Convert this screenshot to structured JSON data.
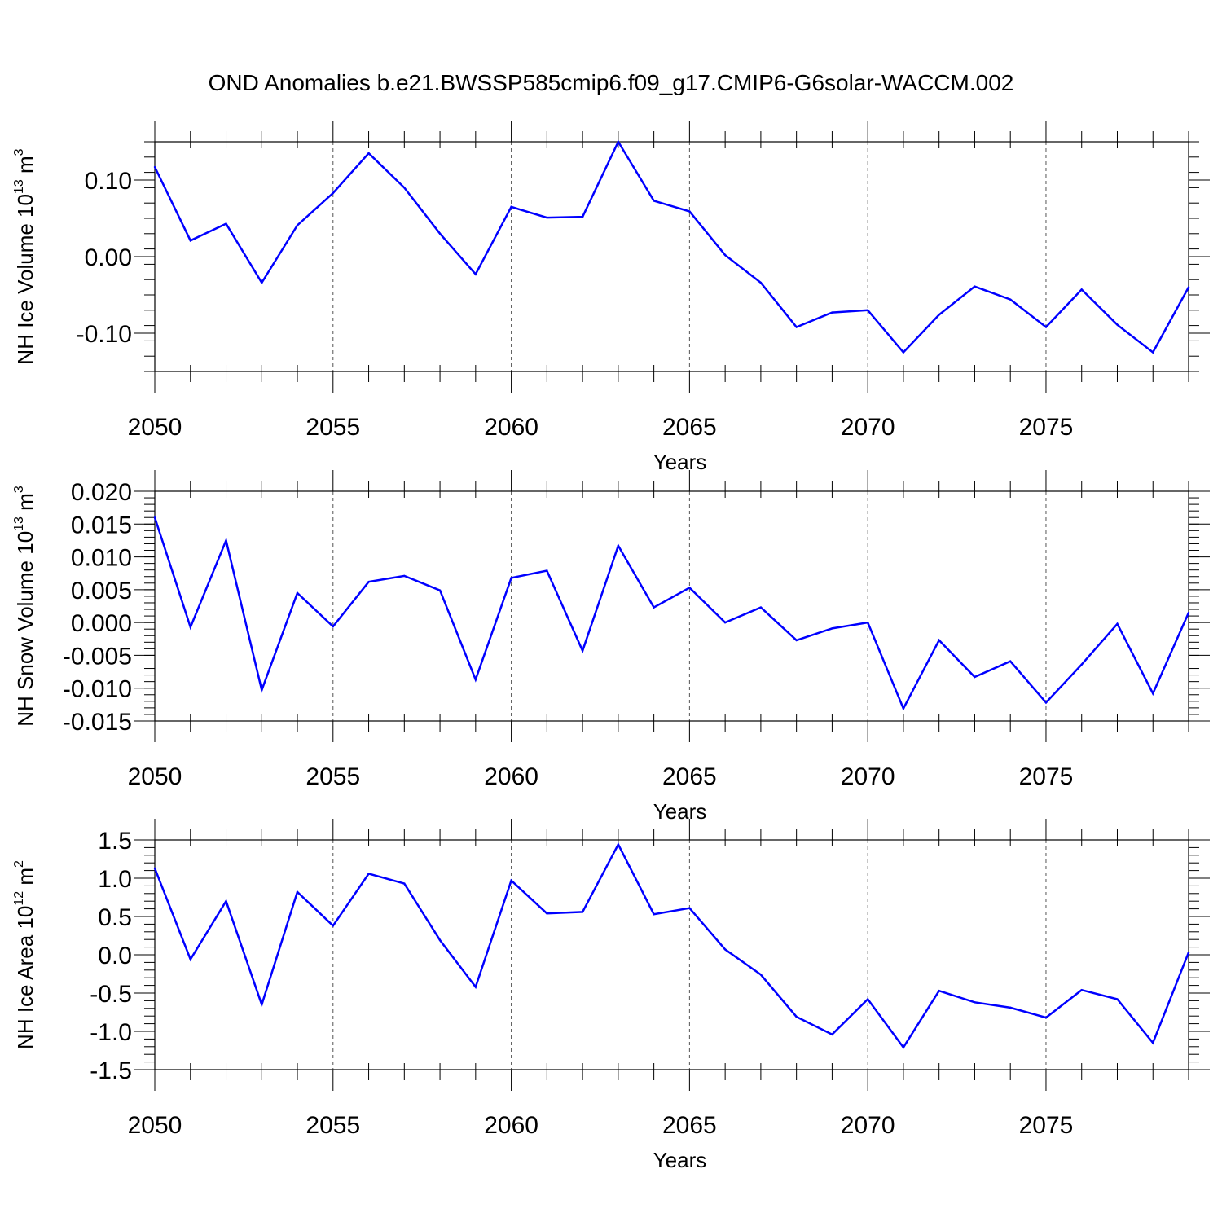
{
  "title": "OND Anomalies b.e21.BWSSP585cmip6.f09_g17.CMIP6-G6solar-WACCM.002",
  "line_color": "#0000ff",
  "chart_data": [
    {
      "type": "line",
      "series": [
        {
          "values": [
            0.117,
            0.021,
            0.043,
            -0.034,
            0.041,
            0.083,
            0.135,
            0.09,
            0.03,
            -0.023,
            0.065,
            0.051,
            0.052,
            0.15,
            0.073,
            0.059,
            0.002,
            -0.034,
            -0.092,
            -0.073,
            -0.07,
            -0.125,
            -0.076,
            -0.039,
            -0.056,
            -0.092,
            -0.043,
            -0.089,
            -0.125,
            -0.04
          ]
        }
      ],
      "x": [
        2050,
        2051,
        2052,
        2053,
        2054,
        2055,
        2056,
        2057,
        2058,
        2059,
        2060,
        2061,
        2062,
        2063,
        2064,
        2065,
        2066,
        2067,
        2068,
        2069,
        2070,
        2071,
        2072,
        2073,
        2074,
        2075,
        2076,
        2077,
        2078,
        2079
      ],
      "xlim": [
        2050,
        2079
      ],
      "ylim": [
        -0.15,
        0.15
      ],
      "xticks": [
        2050,
        2055,
        2060,
        2065,
        2070,
        2075
      ],
      "xtick_labels": [
        "2050",
        "2055",
        "2060",
        "2065",
        "2070",
        "2075"
      ],
      "yticks": [
        0.1,
        0.0,
        -0.1
      ],
      "ytick_labels": [
        "0.10",
        "0.00",
        "-0.10"
      ],
      "ylabel": "NH Ice Volume 10",
      "ylabel_exp": "13",
      "ylabel_unit": "m",
      "ylabel_unit_exp": "3",
      "xlabel": "Years",
      "grid": "vertical-dashed"
    },
    {
      "type": "line",
      "series": [
        {
          "values": [
            0.016,
            -0.0007,
            0.0125,
            -0.0103,
            0.0045,
            -0.0006,
            0.0062,
            0.0071,
            0.0049,
            -0.0087,
            0.0068,
            0.0079,
            -0.0043,
            0.0117,
            0.0023,
            0.0053,
            0.0,
            0.0023,
            -0.0027,
            -0.0009,
            0.0,
            -0.0131,
            -0.0027,
            -0.0083,
            -0.0059,
            -0.0122,
            -0.0064,
            -0.0002,
            -0.0108,
            0.0015
          ]
        }
      ],
      "x": [
        2050,
        2051,
        2052,
        2053,
        2054,
        2055,
        2056,
        2057,
        2058,
        2059,
        2060,
        2061,
        2062,
        2063,
        2064,
        2065,
        2066,
        2067,
        2068,
        2069,
        2070,
        2071,
        2072,
        2073,
        2074,
        2075,
        2076,
        2077,
        2078,
        2079
      ],
      "xlim": [
        2050,
        2079
      ],
      "ylim": [
        -0.015,
        0.02
      ],
      "xticks": [
        2050,
        2055,
        2060,
        2065,
        2070,
        2075
      ],
      "xtick_labels": [
        "2050",
        "2055",
        "2060",
        "2065",
        "2070",
        "2075"
      ],
      "yticks": [
        0.02,
        0.015,
        0.01,
        0.005,
        0.0,
        -0.005,
        -0.01,
        -0.015
      ],
      "ytick_labels": [
        "0.020",
        "0.015",
        "0.010",
        "0.005",
        "0.000",
        "-0.005",
        "-0.010",
        "-0.015"
      ],
      "ylabel": "NH Snow Volume 10",
      "ylabel_exp": "13",
      "ylabel_unit": "m",
      "ylabel_unit_exp": "3",
      "xlabel": "Years",
      "grid": "vertical-dashed"
    },
    {
      "type": "line",
      "series": [
        {
          "values": [
            1.13,
            -0.06,
            0.7,
            -0.65,
            0.82,
            0.38,
            1.06,
            0.93,
            0.19,
            -0.42,
            0.97,
            0.54,
            0.56,
            1.44,
            0.53,
            0.61,
            0.07,
            -0.26,
            -0.81,
            -1.04,
            -0.58,
            -1.21,
            -0.47,
            -0.62,
            -0.69,
            -0.82,
            -0.46,
            -0.58,
            -1.15,
            0.03
          ]
        }
      ],
      "x": [
        2050,
        2051,
        2052,
        2053,
        2054,
        2055,
        2056,
        2057,
        2058,
        2059,
        2060,
        2061,
        2062,
        2063,
        2064,
        2065,
        2066,
        2067,
        2068,
        2069,
        2070,
        2071,
        2072,
        2073,
        2074,
        2075,
        2076,
        2077,
        2078,
        2079
      ],
      "xlim": [
        2050,
        2079
      ],
      "ylim": [
        -1.5,
        1.5
      ],
      "xticks": [
        2050,
        2055,
        2060,
        2065,
        2070,
        2075
      ],
      "xtick_labels": [
        "2050",
        "2055",
        "2060",
        "2065",
        "2070",
        "2075"
      ],
      "yticks": [
        1.5,
        1.0,
        0.5,
        0.0,
        -0.5,
        -1.0,
        -1.5
      ],
      "ytick_labels": [
        "1.5",
        "1.0",
        "0.5",
        "0.0",
        "-0.5",
        "-1.0",
        "-1.5"
      ],
      "ylabel": "NH Ice Area 10",
      "ylabel_exp": "12",
      "ylabel_unit": "m",
      "ylabel_unit_exp": "2",
      "xlabel": "Years",
      "grid": "vertical-dashed"
    }
  ]
}
